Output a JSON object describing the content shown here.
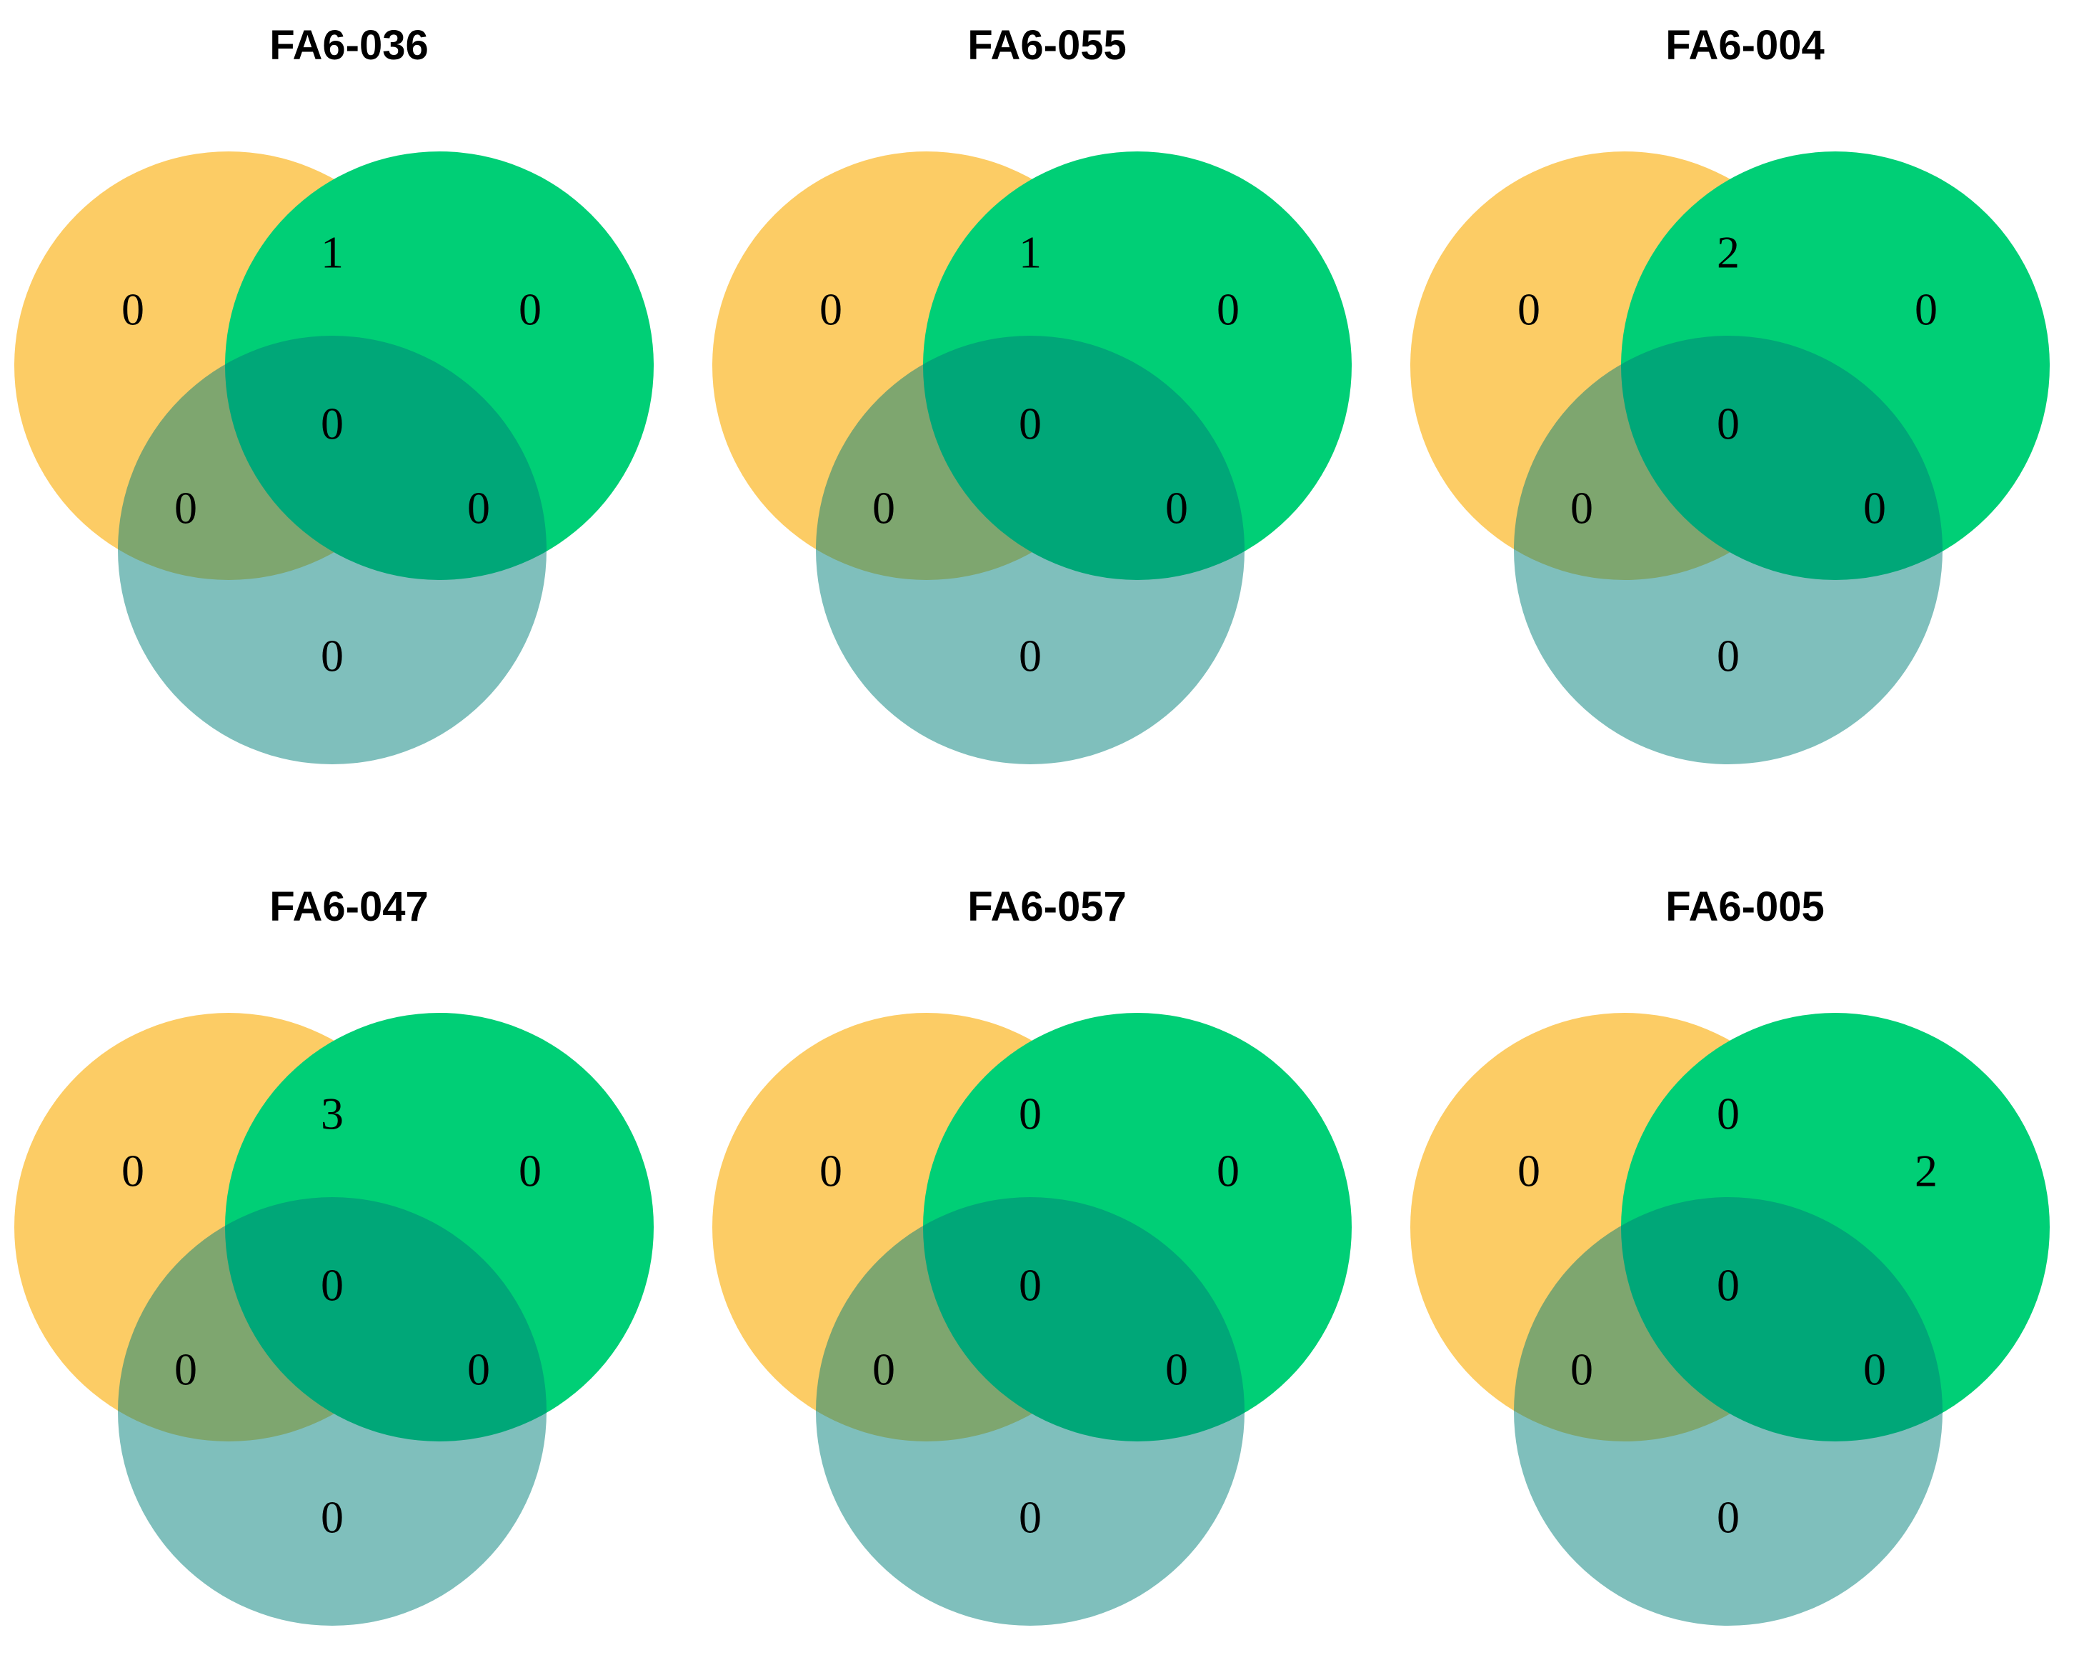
{
  "colors": {
    "set_a": "#fbb829",
    "set_b": "#00cf76",
    "set_c": "#007f7a",
    "text": "#000000",
    "background": "#ffffff"
  },
  "panels": [
    {
      "title": "FA6-036",
      "counts": {
        "a_only": "0",
        "b_only": "0",
        "c_only": "0",
        "ab": "1",
        "ac": "0",
        "bc": "0",
        "abc": "0"
      }
    },
    {
      "title": "FA6-055",
      "counts": {
        "a_only": "0",
        "b_only": "0",
        "c_only": "0",
        "ab": "1",
        "ac": "0",
        "bc": "0",
        "abc": "0"
      }
    },
    {
      "title": "FA6-004",
      "counts": {
        "a_only": "0",
        "b_only": "0",
        "c_only": "0",
        "ab": "2",
        "ac": "0",
        "bc": "0",
        "abc": "0"
      }
    },
    {
      "title": "FA6-047",
      "counts": {
        "a_only": "0",
        "b_only": "0",
        "c_only": "0",
        "ab": "3",
        "ac": "0",
        "bc": "0",
        "abc": "0"
      }
    },
    {
      "title": "FA6-057",
      "counts": {
        "a_only": "0",
        "b_only": "0",
        "c_only": "0",
        "ab": "0",
        "ac": "0",
        "bc": "0",
        "abc": "0"
      }
    },
    {
      "title": "FA6-005",
      "counts": {
        "a_only": "0",
        "b_only": "2",
        "c_only": "0",
        "ab": "0",
        "ac": "0",
        "bc": "0",
        "abc": "0"
      }
    }
  ]
}
